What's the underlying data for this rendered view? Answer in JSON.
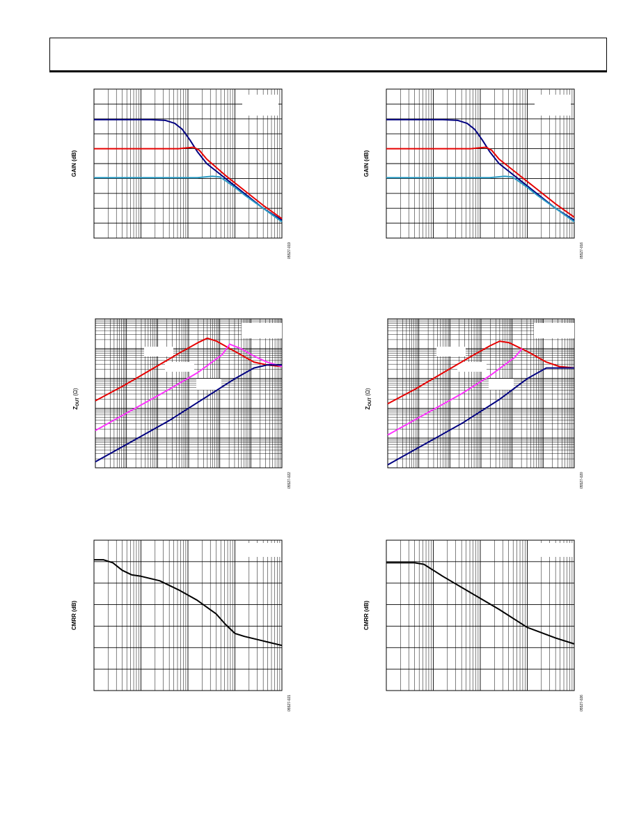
{
  "colors": {
    "navy": "#000080",
    "red": "#e60000",
    "cyan": "#2a9bc4",
    "magenta": "#ff33ff",
    "black": "#000000"
  },
  "chart_data": [
    {
      "type": "line",
      "scale": "log-x",
      "ylabel": "GAIN (dB)",
      "code": "05527-019",
      "xlim": [
        0,
        1
      ],
      "ylim": [
        0,
        1
      ],
      "series": [
        {
          "color": "navy",
          "x": [
            0,
            0.3,
            0.38,
            0.43,
            0.47,
            0.51,
            0.55,
            0.6,
            0.7,
            0.8,
            0.9,
            1.0
          ],
          "y": [
            0.795,
            0.795,
            0.79,
            0.77,
            0.73,
            0.66,
            0.58,
            0.5,
            0.4,
            0.3,
            0.2,
            0.12
          ]
        },
        {
          "color": "red",
          "x": [
            0,
            0.45,
            0.53,
            0.56,
            0.6,
            0.7,
            0.8,
            0.9,
            1.0
          ],
          "y": [
            0.6,
            0.6,
            0.61,
            0.59,
            0.53,
            0.42,
            0.32,
            0.22,
            0.13
          ]
        },
        {
          "color": "cyan",
          "x": [
            0,
            0.55,
            0.63,
            0.67,
            0.7,
            0.75,
            0.8,
            0.9,
            1.0
          ],
          "y": [
            0.405,
            0.405,
            0.415,
            0.41,
            0.385,
            0.34,
            0.29,
            0.2,
            0.11
          ]
        }
      ]
    },
    {
      "type": "line",
      "scale": "log-x",
      "ylabel": "GAIN (dB)",
      "code": "05527-016",
      "xlim": [
        0,
        1
      ],
      "ylim": [
        0,
        1
      ],
      "series": [
        {
          "color": "navy",
          "x": [
            0,
            0.3,
            0.38,
            0.43,
            0.47,
            0.51,
            0.55,
            0.6,
            0.7,
            0.8,
            0.9,
            1.0
          ],
          "y": [
            0.795,
            0.795,
            0.79,
            0.77,
            0.73,
            0.66,
            0.58,
            0.5,
            0.4,
            0.3,
            0.2,
            0.12
          ]
        },
        {
          "color": "red",
          "x": [
            0,
            0.45,
            0.53,
            0.56,
            0.6,
            0.7,
            0.8,
            0.9,
            1.0
          ],
          "y": [
            0.6,
            0.6,
            0.61,
            0.59,
            0.53,
            0.43,
            0.33,
            0.23,
            0.14
          ]
        },
        {
          "color": "cyan",
          "x": [
            0,
            0.55,
            0.63,
            0.67,
            0.7,
            0.75,
            0.8,
            0.9,
            1.0
          ],
          "y": [
            0.405,
            0.405,
            0.415,
            0.41,
            0.385,
            0.34,
            0.29,
            0.2,
            0.11
          ]
        }
      ]
    },
    {
      "type": "line",
      "scale": "log-log",
      "ylabel_main": "Z",
      "ylabel_sub": "OUT",
      "ylabel_unit": " (Ω)",
      "code": "05527-022",
      "xlim": [
        0,
        1
      ],
      "ylim": [
        0,
        1
      ],
      "series": [
        {
          "color": "red",
          "x": [
            0,
            0.15,
            0.3,
            0.45,
            0.55,
            0.6,
            0.65,
            0.75,
            0.85,
            0.92,
            1.0
          ],
          "y": [
            0.45,
            0.55,
            0.66,
            0.77,
            0.84,
            0.87,
            0.85,
            0.78,
            0.71,
            0.69,
            0.68
          ]
        },
        {
          "color": "magenta",
          "x": [
            0,
            0.2,
            0.4,
            0.55,
            0.68,
            0.72,
            0.78,
            0.85,
            0.92,
            1.0
          ],
          "y": [
            0.25,
            0.39,
            0.53,
            0.64,
            0.76,
            0.83,
            0.8,
            0.75,
            0.71,
            0.68
          ]
        },
        {
          "color": "navy",
          "x": [
            0,
            0.2,
            0.4,
            0.6,
            0.75,
            0.85,
            0.92,
            1.0
          ],
          "y": [
            0.04,
            0.18,
            0.32,
            0.48,
            0.6,
            0.67,
            0.69,
            0.69
          ]
        }
      ]
    },
    {
      "type": "line",
      "scale": "log-log",
      "ylabel_main": "Z",
      "ylabel_sub": "OUT",
      "ylabel_unit": " (Ω)",
      "code": "05527-020",
      "xlim": [
        0,
        1
      ],
      "ylim": [
        0,
        1
      ],
      "series": [
        {
          "color": "red",
          "x": [
            0,
            0.15,
            0.3,
            0.45,
            0.55,
            0.6,
            0.65,
            0.75,
            0.85,
            0.92,
            1.0
          ],
          "y": [
            0.43,
            0.53,
            0.64,
            0.75,
            0.82,
            0.85,
            0.84,
            0.78,
            0.71,
            0.68,
            0.67
          ]
        },
        {
          "color": "magenta",
          "x": [
            0,
            0.2,
            0.4,
            0.55,
            0.68,
            0.72
          ],
          "y": [
            0.22,
            0.36,
            0.5,
            0.62,
            0.74,
            0.8
          ]
        },
        {
          "color": "navy",
          "x": [
            0,
            0.2,
            0.4,
            0.6,
            0.75,
            0.85,
            0.92,
            1.0
          ],
          "y": [
            0.02,
            0.16,
            0.3,
            0.46,
            0.6,
            0.67,
            0.67,
            0.67
          ]
        }
      ]
    },
    {
      "type": "line",
      "scale": "log-x",
      "ylabel": "CMRR (dB)",
      "code": "05527-021",
      "xlim": [
        0,
        1
      ],
      "ylim": [
        0,
        1
      ],
      "series": [
        {
          "color": "black",
          "x": [
            0,
            0.05,
            0.1,
            0.15,
            0.2,
            0.25,
            0.35,
            0.45,
            0.55,
            0.65,
            0.7,
            0.75,
            0.8,
            0.9,
            1.0
          ],
          "y": [
            0.87,
            0.87,
            0.85,
            0.8,
            0.77,
            0.76,
            0.73,
            0.67,
            0.6,
            0.51,
            0.44,
            0.38,
            0.36,
            0.33,
            0.3
          ]
        }
      ]
    },
    {
      "type": "line",
      "scale": "log-x",
      "ylabel": "CMRR (dB)",
      "code": "05527-026",
      "xlim": [
        0,
        1
      ],
      "ylim": [
        0,
        1
      ],
      "series": [
        {
          "color": "black",
          "x": [
            0,
            0.15,
            0.2,
            0.3,
            0.45,
            0.6,
            0.75,
            0.9,
            1.0
          ],
          "y": [
            0.85,
            0.85,
            0.84,
            0.76,
            0.65,
            0.54,
            0.42,
            0.35,
            0.31
          ]
        }
      ]
    }
  ]
}
